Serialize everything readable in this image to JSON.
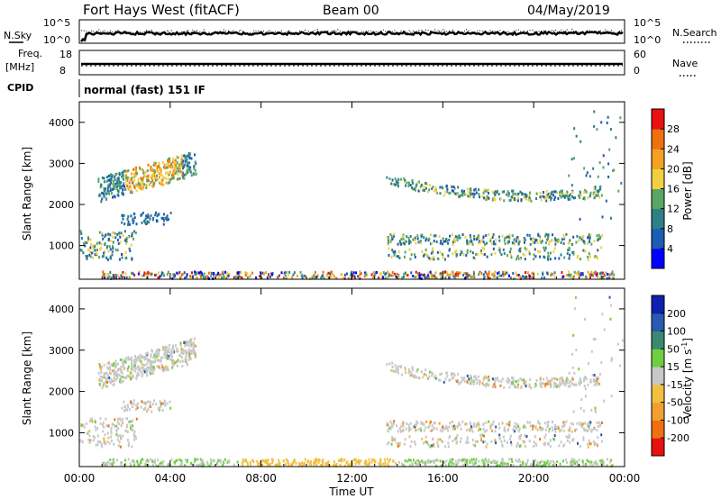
{
  "header": {
    "station": "Fort Hays West (fitACF)",
    "beam": "Beam 00",
    "date": "04/May/2019"
  },
  "top_panels": {
    "nsky_label": "N.Sky",
    "nsearch_label": "N.Search",
    "noise_ticks_left": [
      "10^5",
      "10^0"
    ],
    "noise_ticks_right": [
      "10^5",
      "10^0"
    ],
    "freq_label_1": "Freq.",
    "freq_label_2": "[MHz]",
    "freq_ticks": [
      "18",
      "8"
    ],
    "nave_label": "Nave",
    "nave_ticks": [
      "60",
      "0"
    ],
    "cpid_label": "CPID",
    "cpid_text": "normal (fast) 151 IF"
  },
  "chart_data": [
    {
      "type": "heatmap",
      "title": "Power",
      "ylabel": "Slant Range [km]",
      "xlabel": "Time UT",
      "x_tick_labels": [
        "00:00",
        "04:00",
        "08:00",
        "12:00",
        "16:00",
        "20:00",
        "00:00"
      ],
      "y_tick_labels": [
        "1000",
        "2000",
        "3000",
        "4000"
      ],
      "ylim": [
        180,
        4500
      ],
      "colorbar": {
        "label": "Power [dB]",
        "ticks": [
          "4",
          "8",
          "12",
          "16",
          "20",
          "24",
          "28"
        ],
        "range": [
          0,
          30
        ],
        "colors": [
          "#0000ff",
          "#1c5cb4",
          "#2f7f86",
          "#58a566",
          "#f0d040",
          "#f5a020",
          "#f07010",
          "#e81010"
        ]
      }
    },
    {
      "type": "heatmap",
      "title": "Velocity",
      "ylabel": "Slant Range [km]",
      "xlabel": "Time UT",
      "x_tick_labels": [
        "00:00",
        "04:00",
        "08:00",
        "12:00",
        "16:00",
        "20:00",
        "00:00"
      ],
      "y_tick_labels": [
        "1000",
        "2000",
        "3000",
        "4000"
      ],
      "ylim": [
        180,
        4500
      ],
      "colorbar": {
        "label": "Velocity [m s",
        "label_sup": "-1",
        "label_end": "]",
        "ticks": [
          "200",
          "100",
          "50",
          "15",
          "-15",
          "-50",
          "-100",
          "-200"
        ],
        "colors": [
          "#1020b0",
          "#2a5ab0",
          "#3a8a70",
          "#6fcf40",
          "#c8c8c8",
          "#f0c040",
          "#f0a030",
          "#f07010",
          "#e81010"
        ]
      }
    }
  ],
  "x_axis_title": "Time UT"
}
